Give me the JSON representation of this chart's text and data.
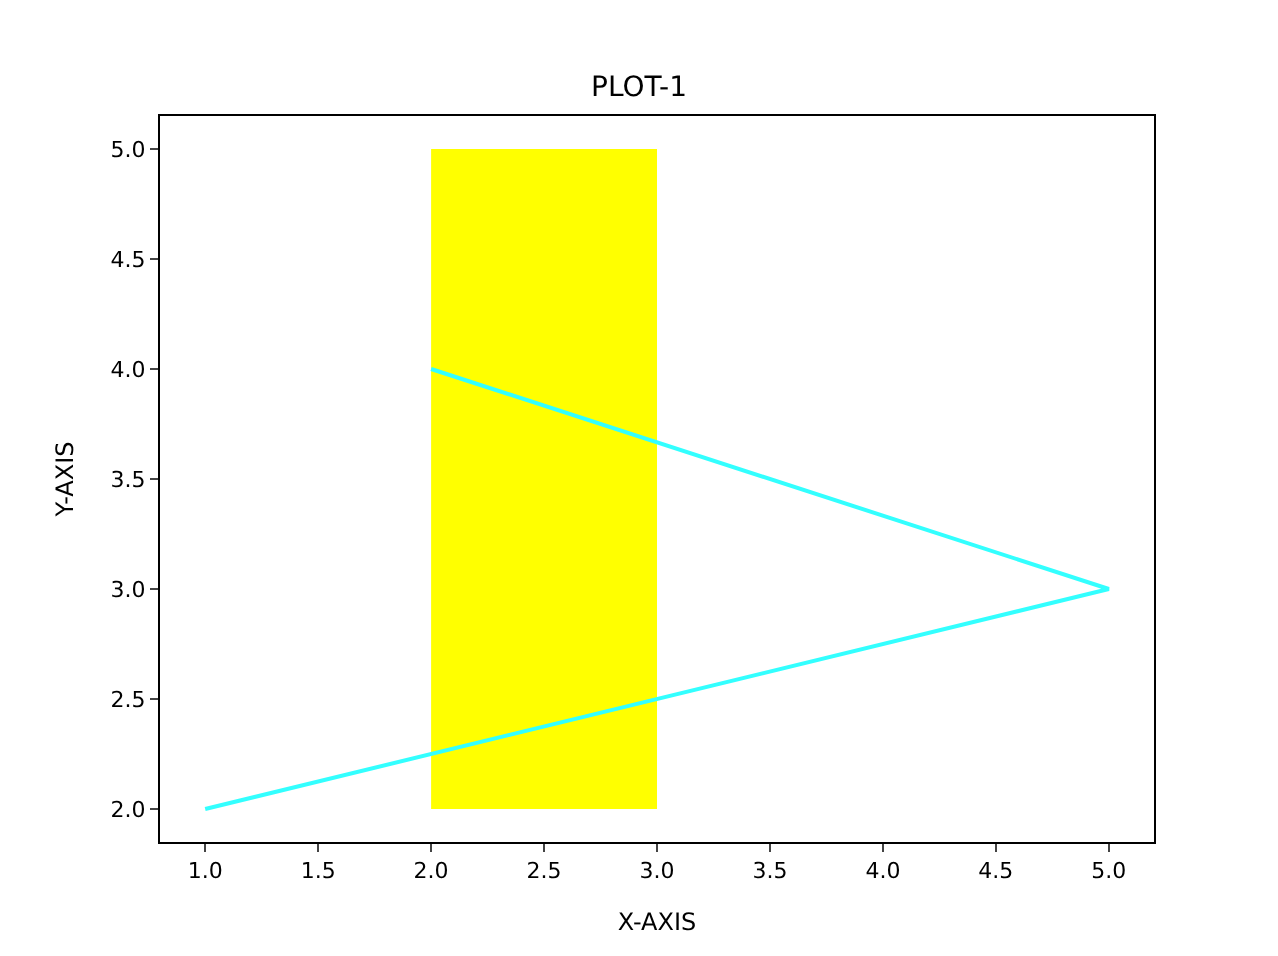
{
  "chart_data": {
    "type": "line",
    "title": "PLOT-1",
    "xlabel": "X-AXIS",
    "ylabel": "Y-AXIS",
    "series": [
      {
        "type": "bar",
        "color": "#ffff00",
        "x": [
          2.5
        ],
        "values": [
          3
        ],
        "base": [
          2
        ]
      },
      {
        "color": "#33ffff",
        "x": [
          1,
          5,
          2
        ],
        "values": [
          2,
          3,
          4
        ]
      }
    ],
    "xlim": [
      0.8,
      5.2
    ],
    "ylim": [
      1.85,
      5.15
    ],
    "xticks": [
      {
        "value": 1,
        "label": "1.0"
      },
      {
        "value": 1.5,
        "label": "1.5"
      },
      {
        "value": 2,
        "label": "2.0"
      },
      {
        "value": 2.5,
        "label": "2.5"
      },
      {
        "value": 3,
        "label": "3.0"
      },
      {
        "value": 3.5,
        "label": "3.5"
      },
      {
        "value": 4,
        "label": "4.0"
      },
      {
        "value": 4.5,
        "label": "4.5"
      },
      {
        "value": 5,
        "label": "5.0"
      }
    ],
    "yticks": [
      {
        "value": 2,
        "label": "2.0"
      },
      {
        "value": 2.5,
        "label": "2.5"
      },
      {
        "value": 3,
        "label": "3.0"
      },
      {
        "value": 3.5,
        "label": "3.5"
      },
      {
        "value": 4,
        "label": "4.0"
      },
      {
        "value": 4.5,
        "label": "4.5"
      },
      {
        "value": 5,
        "label": "5.0"
      }
    ],
    "legend": false
  }
}
